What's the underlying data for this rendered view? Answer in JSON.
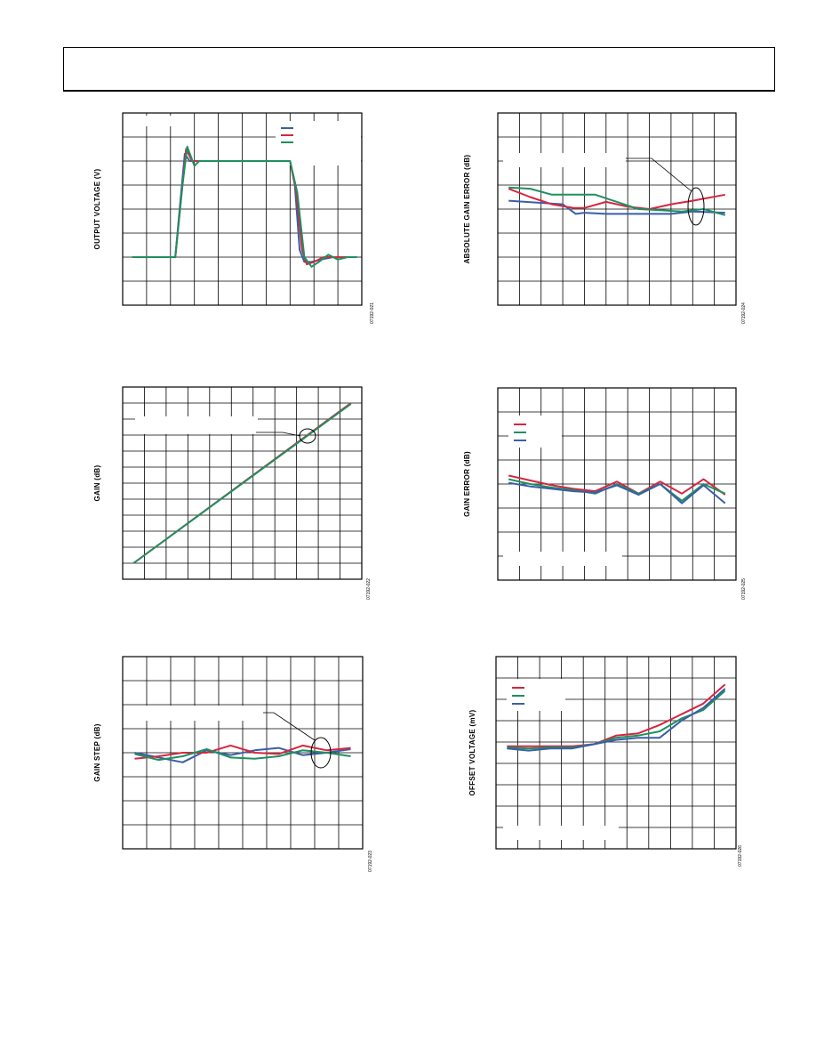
{
  "page": {
    "header_box": true
  },
  "chart_data": [
    {
      "id": "c1",
      "type": "line",
      "ylabel": "OUTPUT VOLTAGE (V)",
      "figure_id": "07192-021",
      "grid": true,
      "legend_placement": "top-right",
      "xlim": [
        0,
        10
      ],
      "ylim": [
        0,
        8
      ],
      "series": [
        {
          "color": "#3b5ea8",
          "x": [
            0.4,
            2.2,
            2.4,
            2.6,
            2.8,
            3.0,
            3.4,
            7.0,
            7.2,
            7.4,
            7.6,
            7.9,
            8.3,
            8.8,
            9.3,
            9.8
          ],
          "y": [
            2.0,
            2.0,
            4.2,
            6.3,
            6.0,
            6.0,
            6.0,
            6.0,
            5.0,
            2.3,
            1.8,
            1.8,
            1.9,
            2.0,
            2.0,
            2.0
          ]
        },
        {
          "color": "#d6263f",
          "x": [
            0.4,
            2.2,
            2.45,
            2.65,
            2.9,
            3.1,
            3.4,
            7.0,
            7.25,
            7.5,
            7.7,
            8.0,
            8.4,
            8.8,
            9.3,
            9.8
          ],
          "y": [
            2.0,
            2.0,
            4.5,
            6.5,
            6.0,
            6.0,
            6.0,
            6.0,
            4.8,
            2.3,
            1.7,
            1.8,
            2.0,
            2.0,
            2.0,
            2.0
          ]
        },
        {
          "color": "#1e9060",
          "x": [
            0.4,
            2.2,
            2.5,
            2.7,
            3.0,
            3.2,
            3.5,
            7.0,
            7.3,
            7.6,
            7.9,
            8.2,
            8.6,
            9.0,
            9.4,
            9.8
          ],
          "y": [
            2.0,
            2.0,
            5.0,
            6.6,
            5.8,
            6.0,
            6.0,
            6.0,
            4.7,
            2.0,
            1.6,
            1.8,
            2.1,
            1.9,
            2.0,
            2.0
          ]
        }
      ]
    },
    {
      "id": "c2",
      "type": "line",
      "ylabel": "ABSOLUTE GAIN ERROR (dB)",
      "figure_id": "07192-024",
      "grid": true,
      "xlim": [
        0,
        11
      ],
      "ylim": [
        0,
        8
      ],
      "series": [
        {
          "color": "#3b5ea8",
          "x": [
            0.5,
            3.0,
            3.6,
            4.0,
            5.0,
            6.0,
            7.0,
            8.0,
            9.0,
            10.5
          ],
          "y": [
            4.35,
            4.2,
            3.8,
            3.85,
            3.8,
            3.8,
            3.8,
            3.8,
            3.9,
            3.85
          ]
        },
        {
          "color": "#d6263f",
          "x": [
            0.5,
            1.5,
            2.5,
            3.5,
            4.0,
            5.0,
            6.0,
            7.0,
            8.0,
            9.0,
            10.5
          ],
          "y": [
            4.85,
            4.5,
            4.2,
            4.05,
            4.05,
            4.3,
            4.1,
            4.0,
            4.2,
            4.35,
            4.6
          ]
        },
        {
          "color": "#1e9060",
          "x": [
            0.5,
            1.5,
            2.5,
            3.5,
            4.5,
            5.5,
            6.5,
            7.5,
            8.5,
            9.5,
            10.5
          ],
          "y": [
            4.9,
            4.85,
            4.6,
            4.6,
            4.6,
            4.3,
            4.0,
            3.95,
            3.9,
            4.0,
            3.75
          ]
        }
      ],
      "annotation_ellipse": true
    },
    {
      "id": "c3",
      "type": "line",
      "ylabel": "GAIN (dB)",
      "figure_id": "07192-022",
      "grid": true,
      "xlim": [
        0,
        11
      ],
      "ylim": [
        0,
        12
      ],
      "series": [
        {
          "color": "#d6263f",
          "x": [
            0.5,
            10.5
          ],
          "y": [
            1.0,
            11.0
          ]
        },
        {
          "color": "#1e9060",
          "x": [
            0.5,
            10.5
          ],
          "y": [
            1.0,
            10.95
          ]
        }
      ],
      "annotation_ellipse": true
    },
    {
      "id": "c4",
      "type": "line",
      "ylabel": "GAIN ERROR (dB)",
      "figure_id": "07192-025",
      "grid": true,
      "legend_placement": "top-left",
      "xlim": [
        0,
        11
      ],
      "ylim": [
        0,
        8
      ],
      "series": [
        {
          "color": "#d6263f",
          "x": [
            0.5,
            1.5,
            2.5,
            3.5,
            4.5,
            5.5,
            6.5,
            7.5,
            8.5,
            9.5,
            10.5
          ],
          "y": [
            4.35,
            4.15,
            3.95,
            3.8,
            3.7,
            4.1,
            3.6,
            4.1,
            3.6,
            4.2,
            3.55
          ]
        },
        {
          "color": "#1e9060",
          "x": [
            0.5,
            1.5,
            2.5,
            3.5,
            4.5,
            5.5,
            6.5,
            7.5,
            8.5,
            9.5,
            10.5
          ],
          "y": [
            4.2,
            4.0,
            3.85,
            3.75,
            3.6,
            4.0,
            3.6,
            4.0,
            3.3,
            4.0,
            3.6
          ]
        },
        {
          "color": "#3b5ea8",
          "x": [
            0.5,
            1.5,
            2.5,
            3.5,
            4.5,
            5.5,
            6.5,
            7.5,
            8.5,
            9.5,
            10.5
          ],
          "y": [
            4.05,
            3.9,
            3.8,
            3.7,
            3.65,
            3.95,
            3.55,
            4.0,
            3.2,
            3.95,
            3.2
          ]
        }
      ]
    },
    {
      "id": "c5",
      "type": "line",
      "ylabel": "GAIN STEP (dB)",
      "figure_id": "07192-023",
      "grid": true,
      "xlim": [
        0,
        10
      ],
      "ylim": [
        0,
        8
      ],
      "series": [
        {
          "color": "#3b5ea8",
          "x": [
            0.5,
            1.5,
            2.5,
            3.5,
            4.5,
            5.5,
            6.5,
            7.5,
            8.5,
            9.5
          ],
          "y": [
            4.0,
            3.8,
            3.6,
            4.1,
            3.9,
            4.1,
            4.2,
            3.9,
            4.0,
            4.15
          ]
        },
        {
          "color": "#d6263f",
          "x": [
            0.5,
            1.5,
            2.5,
            3.5,
            4.5,
            5.5,
            6.5,
            7.5,
            8.5,
            9.5
          ],
          "y": [
            3.75,
            3.85,
            4.0,
            4.0,
            4.3,
            4.0,
            3.95,
            4.3,
            4.1,
            4.2
          ]
        },
        {
          "color": "#1e9060",
          "x": [
            0.5,
            1.5,
            2.5,
            3.5,
            4.5,
            5.5,
            6.5,
            7.5,
            8.5,
            9.5
          ],
          "y": [
            3.95,
            3.7,
            3.85,
            4.15,
            3.8,
            3.75,
            3.85,
            4.1,
            4.0,
            3.85
          ]
        }
      ],
      "annotation_ellipse": true
    },
    {
      "id": "c6",
      "type": "line",
      "ylabel": "OFFSET VOLTAGE (mV)",
      "figure_id": "07192-026",
      "grid": true,
      "legend_placement": "top-left",
      "xlim": [
        0,
        11
      ],
      "ylim": [
        0,
        9
      ],
      "series": [
        {
          "color": "#d6263f",
          "x": [
            0.5,
            1.5,
            2.5,
            3.5,
            4.5,
            5.5,
            6.5,
            7.5,
            8.5,
            9.5,
            10.5
          ],
          "y": [
            4.8,
            4.8,
            4.8,
            4.8,
            4.9,
            5.3,
            5.4,
            5.8,
            6.3,
            6.8,
            7.7
          ]
        },
        {
          "color": "#1e9060",
          "x": [
            0.5,
            1.5,
            2.5,
            3.5,
            4.5,
            5.5,
            6.5,
            7.5,
            8.5,
            9.5,
            10.5
          ],
          "y": [
            4.75,
            4.7,
            4.75,
            4.75,
            4.9,
            5.2,
            5.3,
            5.5,
            6.1,
            6.5,
            7.4
          ]
        },
        {
          "color": "#3b5ea8",
          "x": [
            0.5,
            1.5,
            2.5,
            3.5,
            4.5,
            5.5,
            6.5,
            7.5,
            8.5,
            9.5,
            10.5
          ],
          "y": [
            4.7,
            4.6,
            4.7,
            4.7,
            4.9,
            5.1,
            5.2,
            5.2,
            6.0,
            6.6,
            7.5
          ]
        }
      ]
    }
  ]
}
